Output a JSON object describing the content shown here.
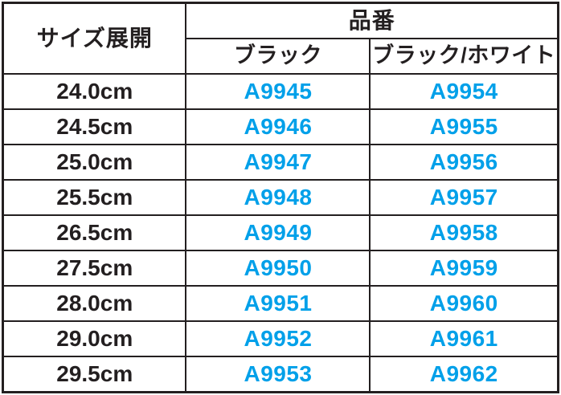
{
  "colors": {
    "border": "#231f20",
    "text": "#231f20",
    "code": "#00a0e9",
    "background": "#ffffff"
  },
  "table": {
    "size_header": "サイズ展開",
    "part_number_header": "品番",
    "color_headers": [
      "ブラック",
      "ブラック/ホワイト"
    ],
    "rows": [
      {
        "size": "24.0cm",
        "black": "A9945",
        "black_white": "A9954"
      },
      {
        "size": "24.5cm",
        "black": "A9946",
        "black_white": "A9955"
      },
      {
        "size": "25.0cm",
        "black": "A9947",
        "black_white": "A9956"
      },
      {
        "size": "25.5cm",
        "black": "A9948",
        "black_white": "A9957"
      },
      {
        "size": "26.5cm",
        "black": "A9949",
        "black_white": "A9958"
      },
      {
        "size": "27.5cm",
        "black": "A9950",
        "black_white": "A9959"
      },
      {
        "size": "28.0cm",
        "black": "A9951",
        "black_white": "A9960"
      },
      {
        "size": "29.0cm",
        "black": "A9952",
        "black_white": "A9961"
      },
      {
        "size": "29.5cm",
        "black": "A9953",
        "black_white": "A9962"
      }
    ]
  }
}
